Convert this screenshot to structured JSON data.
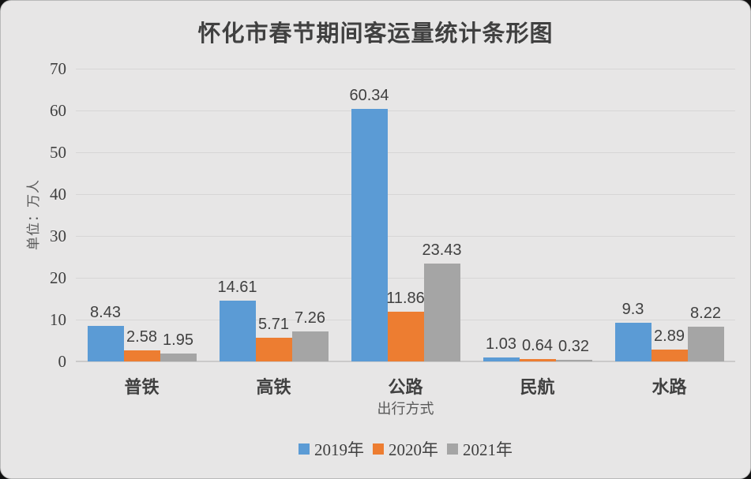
{
  "page": {
    "background_color": "#e7e6e6",
    "text_color": "#404040"
  },
  "chart_data": {
    "type": "bar",
    "title": "怀化市春节期间客运量统计条形图",
    "categories": [
      "普铁",
      "高铁",
      "公路",
      "民航",
      "水路"
    ],
    "series": [
      {
        "name": "2019年",
        "color": "#5b9bd5",
        "values": [
          8.43,
          14.61,
          60.34,
          1.03,
          9.3
        ]
      },
      {
        "name": "2020年",
        "color": "#ed7d31",
        "values": [
          2.58,
          5.71,
          11.86,
          0.64,
          2.89
        ]
      },
      {
        "name": "2021年",
        "color": "#a5a5a5",
        "values": [
          1.95,
          7.26,
          23.43,
          0.32,
          8.22
        ]
      }
    ],
    "xlabel": "出行方式",
    "ylabel": "单位：万人",
    "ylim": [
      0,
      70
    ],
    "ytick_step": 10,
    "grid": true,
    "data_labels": true,
    "legend_position": "bottom"
  }
}
